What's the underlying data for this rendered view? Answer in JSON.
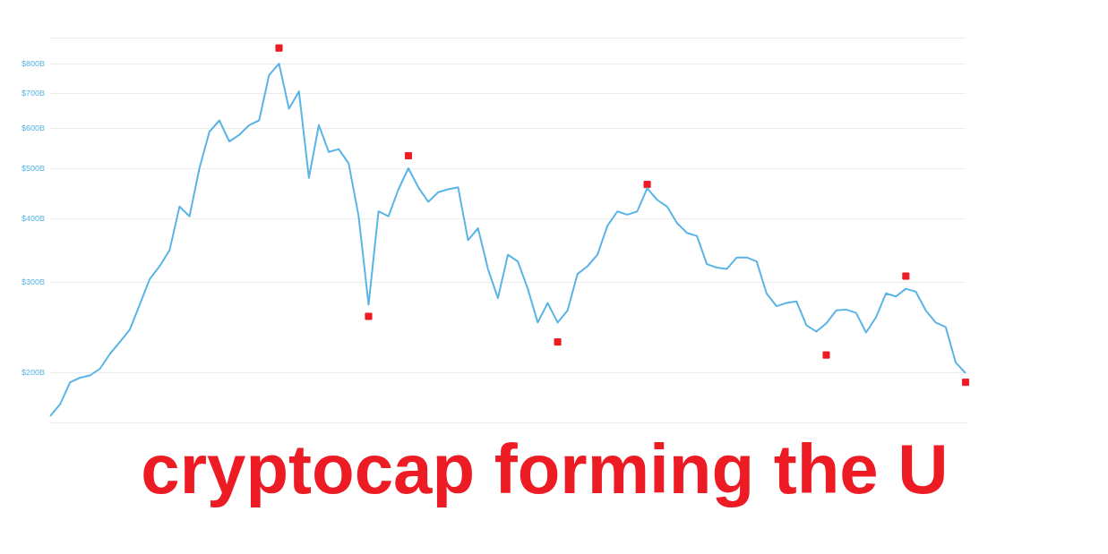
{
  "chart_data": {
    "type": "line",
    "title": "cryptocap forming the U",
    "categories": [
      null,
      null,
      null,
      null,
      null,
      null,
      null,
      null,
      null,
      null,
      null,
      null,
      null,
      null,
      null,
      null,
      null,
      null,
      null,
      null,
      null,
      null,
      null,
      null,
      null,
      null,
      null,
      null,
      null,
      null,
      null,
      null,
      null,
      null,
      null,
      null,
      null,
      null,
      null,
      null,
      null,
      null,
      null,
      null,
      null,
      null,
      null,
      null,
      null,
      null,
      null,
      null,
      null,
      null,
      null,
      null,
      null,
      null,
      null,
      null,
      null,
      null,
      null,
      null,
      null,
      null,
      null,
      null,
      null,
      null,
      null,
      null,
      null,
      null,
      null,
      null,
      null,
      null,
      null,
      null,
      null,
      null,
      null,
      null,
      null,
      null,
      null,
      null,
      null,
      null,
      null,
      null,
      null
    ],
    "series": [
      {
        "type": "line",
        "color": "#5ab4e5",
        "values": [
          165,
          174,
          192,
          196,
          198,
          204,
          218,
          230,
          243,
          272,
          305,
          323,
          347,
          422,
          404,
          501,
          590,
          621,
          565,
          582,
          608,
          621,
          761,
          801,
          654,
          707,
          480,
          608,
          539,
          546,
          512,
          404,
          272,
          413,
          404,
          456,
          501,
          460,
          431,
          450,
          456,
          460,
          363,
          383,
          319,
          280,
          340,
          330,
          292,
          251,
          274,
          251,
          265,
          312,
          323,
          340,
          387,
          413,
          407,
          413,
          458,
          435,
          422,
          392,
          375,
          370,
          326,
          321,
          319,
          336,
          336,
          330,
          286,
          270,
          274,
          276,
          248,
          241,
          250,
          265,
          266,
          262,
          240,
          257,
          286,
          282,
          292,
          288,
          265,
          251,
          246,
          210,
          200
        ]
      },
      {
        "type": "scatter",
        "color": "#ed1c24",
        "marker": "square",
        "values": [
          null,
          null,
          null,
          null,
          null,
          null,
          null,
          null,
          null,
          null,
          null,
          null,
          null,
          null,
          null,
          null,
          null,
          null,
          null,
          null,
          null,
          null,
          null,
          859,
          null,
          null,
          null,
          null,
          null,
          null,
          null,
          null,
          258,
          null,
          null,
          null,
          530,
          null,
          null,
          null,
          null,
          null,
          null,
          null,
          null,
          null,
          null,
          null,
          null,
          null,
          null,
          230,
          null,
          null,
          null,
          null,
          null,
          null,
          null,
          null,
          466,
          null,
          null,
          null,
          null,
          null,
          null,
          null,
          null,
          null,
          null,
          null,
          null,
          null,
          null,
          null,
          null,
          null,
          217,
          null,
          null,
          null,
          null,
          null,
          null,
          null,
          309,
          null,
          null,
          null,
          null,
          null,
          192
        ]
      }
    ],
    "log": "y",
    "ylim": [
      160,
      900
    ],
    "yticks": [
      {
        "value": 200,
        "label": "$200B"
      },
      {
        "value": 300,
        "label": "$300B"
      },
      {
        "value": 400,
        "label": "$400B"
      },
      {
        "value": 500,
        "label": "$500B"
      },
      {
        "value": 600,
        "label": "$600B"
      },
      {
        "value": 700,
        "label": "$700B"
      },
      {
        "value": 800,
        "label": "$800B"
      },
      {
        "value": 900,
        "label": null
      }
    ],
    "grid": "y",
    "legend": false,
    "tick_labels": "y"
  }
}
